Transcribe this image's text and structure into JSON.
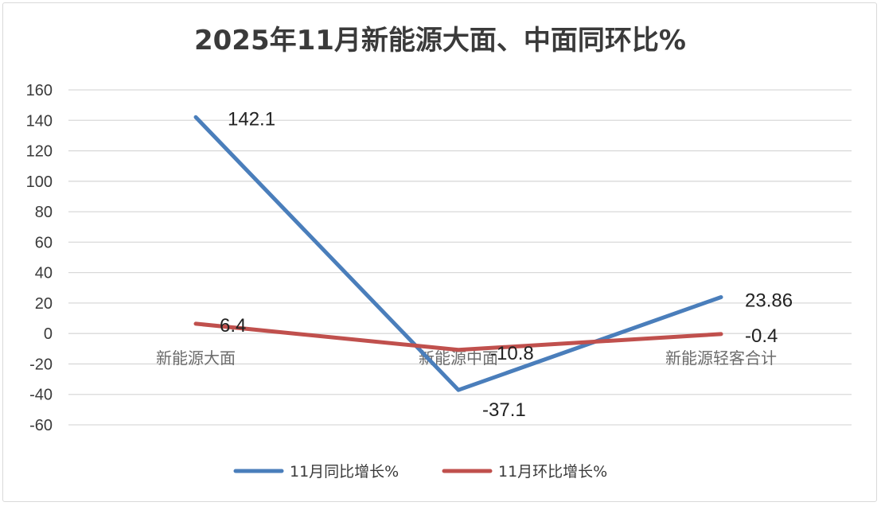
{
  "chart_data": {
    "type": "line",
    "title": "2025年11月新能源大面、中面同环比%",
    "xlabel": "",
    "ylabel": "",
    "categories": [
      "新能源大面",
      "新能源中面",
      "新能源轻客合计"
    ],
    "ylim": [
      -60,
      160
    ],
    "yticks": [
      160,
      140,
      120,
      100,
      80,
      60,
      40,
      20,
      0,
      -20,
      -40,
      -60
    ],
    "grid": true,
    "legend_position": "bottom",
    "series": [
      {
        "name": "11月同比增长%",
        "color": "#4a7ebb",
        "values": [
          142.1,
          -37.1,
          23.86
        ],
        "labels": [
          "142.1",
          "-37.1",
          "23.86"
        ]
      },
      {
        "name": "11月环比增长%",
        "color": "#c0504d",
        "values": [
          6.4,
          -10.8,
          -0.4
        ],
        "labels": [
          "6.4",
          "-10.8",
          "-0.4"
        ]
      }
    ]
  }
}
